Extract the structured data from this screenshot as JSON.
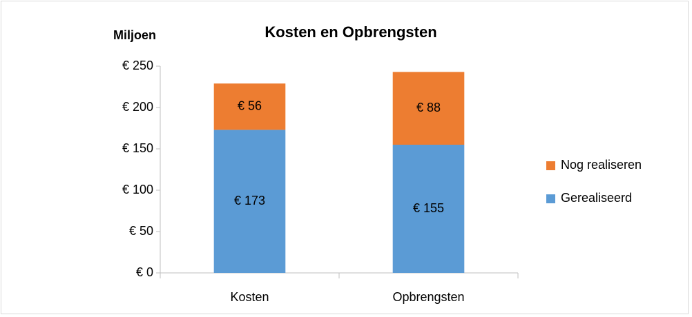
{
  "chart_data": {
    "type": "stacked_bar",
    "title": "Kosten en Opbrengsten",
    "y_label": "Miljoen",
    "categories": [
      "Kosten",
      "Opbrengsten"
    ],
    "series": [
      {
        "name": "Gerealiseerd",
        "color": "#5b9bd5",
        "values": [
          173,
          155
        ],
        "value_labels": [
          "€ 173",
          "€ 155"
        ]
      },
      {
        "name": "Nog realiseren",
        "color": "#ed7d31",
        "values": [
          56,
          88
        ],
        "value_labels": [
          "€ 56",
          "€ 88"
        ]
      }
    ],
    "ylim": [
      0,
      250
    ],
    "yticks": [
      {
        "value": 0,
        "label": "€ 0"
      },
      {
        "value": 50,
        "label": "€ 50"
      },
      {
        "value": 100,
        "label": "€ 100"
      },
      {
        "value": 150,
        "label": "€ 150"
      },
      {
        "value": 200,
        "label": "€ 200"
      },
      {
        "value": 250,
        "label": "€ 250"
      }
    ],
    "grid": false,
    "legend": "right"
  }
}
